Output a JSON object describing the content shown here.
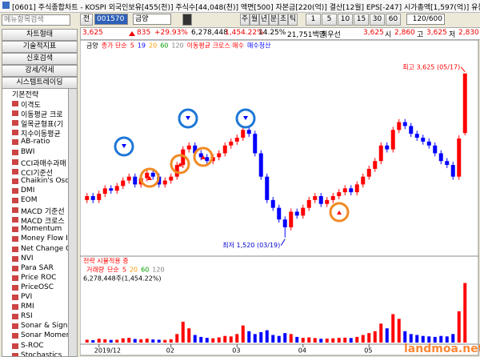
{
  "window": {
    "title": "[0601] 주식종합차트 - KOSPI 외국인보유[455(천)] 주식수[44,048(천)] 액면[500] 자본금[220(억)] 결산[12월] EPS[-247] 시가총액[1,597(억)] 유동"
  },
  "toolbar": {
    "search": "메뉴항목검색",
    "prefix": "전",
    "code": "001570",
    "name": "금양",
    "periods": [
      "주",
      "월",
      "년",
      "분",
      "초",
      "틱"
    ],
    "intervals": [
      "1",
      "5",
      "10",
      "15",
      "30",
      "60"
    ],
    "count": "120/600"
  },
  "quote": {
    "price": "3,625",
    "change": "835",
    "pct": "+29.93%",
    "volume": "6,278,448",
    "vol_pct": "1,454.22%",
    "turnover": "14.25%",
    "amount": "21,751백만",
    "best": "최우선",
    "best_price": "3,625",
    "open_label": "시",
    "open": "2,860",
    "high_label": "고",
    "high": "3,625",
    "low_label": "저",
    "low": "2,830"
  },
  "sidebar": {
    "buttons": [
      "차트형태",
      "기술적지표",
      "신호검색",
      "강세/약세",
      "시스템트레이딩"
    ],
    "tree_root": "기본전략",
    "items": [
      "이격도",
      "이동평균 크로",
      "일목균형표(기",
      "지수이동평균",
      "AB-ratio",
      "BWI",
      "CCI과매수과매",
      "CCI기준선",
      "Chaikin's Osc",
      "DMI",
      "EOM",
      "MACD 기준선",
      "MACD 크로스",
      "Momentum",
      "Money Flow I",
      "Net Change C",
      "NVI",
      "Para SAR",
      "Price ROC",
      "PriceOSC",
      "PVI",
      "RMI",
      "RSI",
      "Sonar & Signa",
      "Sonar Momer",
      "S-ROC",
      "Stochastics"
    ]
  },
  "chart_data": {
    "type": "candlestick",
    "legend": [
      {
        "text": "금양",
        "color": "#000000"
      },
      {
        "text": "종가 단순",
        "color": "#ff0000"
      },
      {
        "text": "5",
        "color": "#ff0000"
      },
      {
        "text": "19",
        "color": "#0000ff"
      },
      {
        "text": "20",
        "color": "#ff9900"
      },
      {
        "text": "60",
        "color": "#009900"
      },
      {
        "text": "120",
        "color": "#808080"
      },
      {
        "text": "이동평균 크로스 매수",
        "color": "#ff0000"
      },
      {
        "text": "매수청산",
        "color": "#0000ff"
      }
    ],
    "strategy_label": "전략 시뮬적용 중",
    "volume_legend": [
      {
        "text": "거래량",
        "color": "#ff0000"
      },
      {
        "text": "단순",
        "color": "#ff0000"
      },
      {
        "text": "5",
        "color": "#ff0000"
      },
      {
        "text": "20",
        "color": "#ff9900"
      },
      {
        "text": "60",
        "color": "#009900"
      },
      {
        "text": "120",
        "color": "#808080"
      }
    ],
    "volume_label": "6,278,448주(1,454.22%)",
    "high_label": "최고 3,625 (05/17)",
    "low_label": "최저 1,520 (03/19)",
    "watermark": "landmoa.net",
    "up_color": "#ff0000",
    "down_color": "#0000ff",
    "categories": [
      null,
      null,
      "2019/12",
      null,
      null,
      null,
      null,
      null,
      null,
      null,
      null,
      null,
      null,
      null,
      "02",
      null,
      null,
      null,
      null,
      null,
      null,
      null,
      null,
      null,
      null,
      "03",
      null,
      null,
      null,
      null,
      null,
      null,
      null,
      null,
      null,
      null,
      "04",
      null,
      null,
      null,
      null,
      null,
      null,
      null,
      null,
      null,
      null,
      "05",
      null,
      null,
      null,
      null,
      null,
      null,
      null,
      null,
      null,
      null,
      null,
      null,
      null,
      null,
      null,
      null
    ],
    "open": [
      2000,
      2050,
      2000,
      2080,
      2150,
      2120,
      2180,
      2250,
      2300,
      2200,
      2280,
      2350,
      2300,
      2200,
      2250,
      2300,
      2450,
      2650,
      2700,
      2600,
      2550,
      2500,
      2550,
      2600,
      2700,
      2750,
      2800,
      2900,
      2850,
      2600,
      2300,
      2000,
      1900,
      1750,
      1650,
      1850,
      1800,
      1900,
      2000,
      2050,
      1950,
      2000,
      2050,
      2100,
      2150,
      2100,
      2200,
      2300,
      2400,
      2500,
      2700,
      2650,
      2900,
      3000,
      2950,
      2850,
      2800,
      2750,
      2700,
      2600,
      2500,
      2450,
      2300,
      2860
    ],
    "high": [
      2090,
      2090,
      2120,
      2190,
      2190,
      2220,
      2290,
      2340,
      2340,
      2320,
      2390,
      2390,
      2340,
      2290,
      2340,
      2490,
      2690,
      2740,
      2740,
      2640,
      2590,
      2590,
      2640,
      2740,
      2790,
      2840,
      2940,
      2940,
      2890,
      2640,
      2340,
      2040,
      1940,
      1790,
      1890,
      1890,
      1940,
      2040,
      2090,
      2090,
      2040,
      2090,
      2140,
      2190,
      2190,
      2240,
      2340,
      2440,
      2540,
      2740,
      2740,
      2940,
      3040,
      3040,
      2990,
      2890,
      2840,
      2790,
      2740,
      2640,
      2540,
      2490,
      2830,
      3625
    ],
    "low": [
      1960,
      1960,
      1960,
      2040,
      2080,
      2080,
      2140,
      2210,
      2160,
      2160,
      2240,
      2260,
      2160,
      2160,
      2210,
      2260,
      2410,
      2610,
      2560,
      2510,
      2460,
      2460,
      2510,
      2560,
      2660,
      2710,
      2760,
      2810,
      2560,
      2260,
      1960,
      1860,
      1710,
      1520,
      1610,
      1760,
      1760,
      1860,
      1960,
      1910,
      1910,
      1960,
      2010,
      2060,
      2060,
      2060,
      2160,
      2260,
      2360,
      2460,
      2610,
      2610,
      2860,
      2910,
      2810,
      2760,
      2710,
      2660,
      2560,
      2460,
      2410,
      2260,
      2260,
      2830
    ],
    "close": [
      2050,
      2000,
      2080,
      2150,
      2120,
      2180,
      2250,
      2300,
      2200,
      2280,
      2350,
      2300,
      2200,
      2250,
      2300,
      2450,
      2650,
      2700,
      2600,
      2550,
      2500,
      2550,
      2600,
      2700,
      2750,
      2800,
      2900,
      2850,
      2600,
      2300,
      2000,
      1900,
      1750,
      1650,
      1850,
      1800,
      1900,
      2000,
      2050,
      1950,
      2000,
      2050,
      2100,
      2150,
      2100,
      2200,
      2300,
      2400,
      2500,
      2700,
      2650,
      2900,
      3000,
      2950,
      2850,
      2800,
      2750,
      2700,
      2600,
      2500,
      2450,
      2300,
      2790,
      3625
    ],
    "volume": [
      300000,
      250000,
      400000,
      350000,
      280000,
      300000,
      450000,
      500000,
      380000,
      350000,
      420000,
      330000,
      300000,
      280000,
      350000,
      900000,
      2200000,
      1500000,
      800000,
      600000,
      500000,
      450000,
      550000,
      700000,
      650000,
      900000,
      1800000,
      1200000,
      900000,
      1100000,
      1300000,
      800000,
      700000,
      1000000,
      900000,
      600000,
      500000,
      550000,
      480000,
      400000,
      420000,
      450000,
      500000,
      520000,
      480000,
      600000,
      800000,
      1000000,
      1200000,
      2000000,
      1500000,
      3000000,
      2500000,
      1200000,
      900000,
      800000,
      700000,
      650000,
      600000,
      700000,
      650000,
      900000,
      3300000,
      6278448
    ],
    "ylim": [
      1300,
      3900
    ],
    "volume_ylim": [
      0,
      7000000
    ]
  }
}
